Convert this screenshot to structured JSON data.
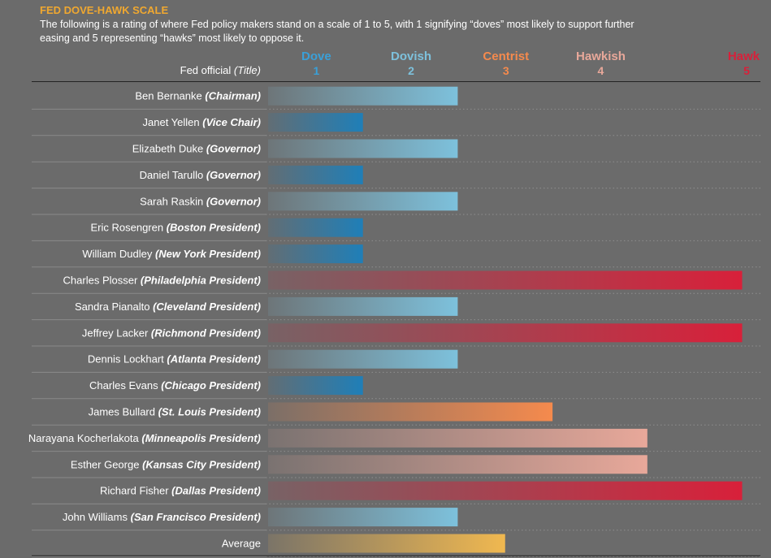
{
  "header": {
    "title": "FED DOVE-HAWK SCALE",
    "description": "The following is a rating of where Fed policy makers stand on a scale of 1 to 5, with 1 signifying “doves” most likely to support further easing and 5 representing “hawks” most likely to oppose it.",
    "column_name": "Fed official",
    "column_title": "(Title)"
  },
  "colors": {
    "background": "#6b6b6b",
    "title_accent": "#f0a830",
    "dove": "#1f7fb8",
    "dovish": "#7dc1dc",
    "centrist": "#f58a4d",
    "hawkish": "#e8a89a",
    "hawk": "#d8203a",
    "average": "#f0b850"
  },
  "chart_data": {
    "type": "bar",
    "orientation": "horizontal",
    "scale": [
      {
        "label": "Dove",
        "value": 1,
        "color": "#3aa0d8"
      },
      {
        "label": "Dovish",
        "value": 2,
        "color": "#7dc1dc"
      },
      {
        "label": "Centrist",
        "value": 3,
        "color": "#f58a4d"
      },
      {
        "label": "Hawkish",
        "value": 4,
        "color": "#e8a89a"
      },
      {
        "label": "Hawk",
        "value": 5,
        "color": "#d8203a"
      }
    ],
    "xlim": [
      0,
      5
    ],
    "grid": true,
    "rows": [
      {
        "name": "Ben Bernanke",
        "title": "(Chairman)",
        "value": 2
      },
      {
        "name": "Janet Yellen",
        "title": "(Vice Chair)",
        "value": 1
      },
      {
        "name": "Elizabeth Duke",
        "title": "(Governor)",
        "value": 2
      },
      {
        "name": "Daniel Tarullo",
        "title": "(Governor)",
        "value": 1
      },
      {
        "name": "Sarah Raskin",
        "title": "(Governor)",
        "value": 2
      },
      {
        "name": "Eric Rosengren",
        "title": "(Boston President)",
        "value": 1
      },
      {
        "name": "William Dudley",
        "title": "(New York President)",
        "value": 1
      },
      {
        "name": "Charles Plosser",
        "title": "(Philadelphia President)",
        "value": 5
      },
      {
        "name": "Sandra Pianalto",
        "title": "(Cleveland President)",
        "value": 2
      },
      {
        "name": "Jeffrey Lacker",
        "title": "(Richmond President)",
        "value": 5
      },
      {
        "name": "Dennis Lockhart",
        "title": "(Atlanta President)",
        "value": 2
      },
      {
        "name": "Charles Evans",
        "title": "(Chicago President)",
        "value": 1
      },
      {
        "name": "James Bullard",
        "title": "(St. Louis President)",
        "value": 3
      },
      {
        "name": "Narayana Kocherlakota",
        "title": "(Minneapolis President)",
        "value": 4
      },
      {
        "name": "Esther George",
        "title": "(Kansas City President)",
        "value": 4
      },
      {
        "name": "Richard Fisher",
        "title": "(Dallas President)",
        "value": 5
      },
      {
        "name": "John Williams",
        "title": "(San Francisco President)",
        "value": 2
      },
      {
        "name": "Average",
        "title": "",
        "value": 2.5,
        "is_average": true
      }
    ]
  }
}
